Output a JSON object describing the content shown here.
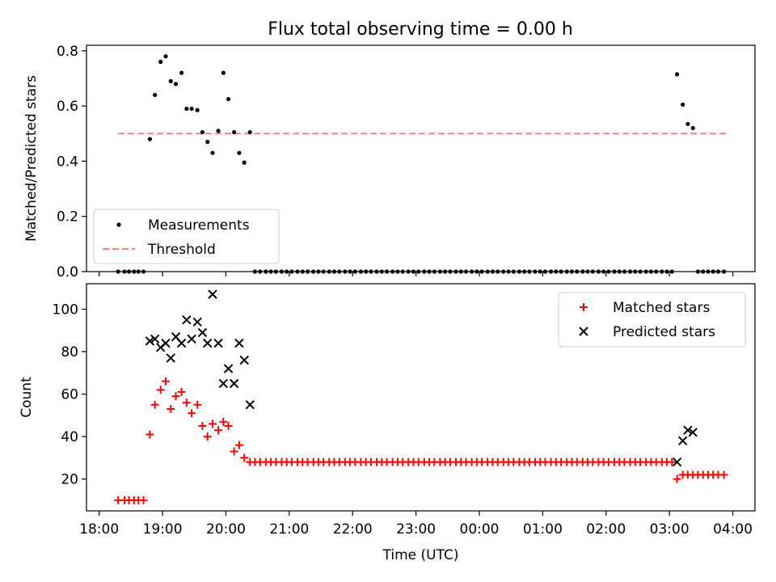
{
  "title": "Flux total observing time = 0.00 h",
  "chart_data": [
    {
      "type": "scatter",
      "ylabel": "Matched/Predicted stars",
      "xlim": [
        -0.2,
        10.35
      ],
      "ylim": [
        0,
        0.82
      ],
      "yticks": [
        0.0,
        0.2,
        0.4,
        0.6,
        0.8
      ],
      "yticklabels": [
        "0.0",
        "0.2",
        "0.4",
        "0.6",
        "0.8"
      ],
      "threshold": {
        "value": 0.5,
        "x_range": [
          0.3,
          9.9
        ],
        "color": "#ff7f7f"
      },
      "legend": {
        "position": "lower-left",
        "entries": [
          "Measurements",
          "Threshold"
        ]
      },
      "series": [
        {
          "name": "Measurements",
          "color": "#000000",
          "points": [
            [
              0.3,
              0
            ],
            [
              0.4,
              0
            ],
            [
              0.47,
              0
            ],
            [
              0.55,
              0
            ],
            [
              0.62,
              0
            ],
            [
              0.7,
              0
            ],
            [
              0.8,
              0.48
            ],
            [
              0.88,
              0.64
            ],
            [
              0.97,
              0.76
            ],
            [
              1.05,
              0.78
            ],
            [
              1.13,
              0.69
            ],
            [
              1.21,
              0.68
            ],
            [
              1.3,
              0.72
            ],
            [
              1.38,
              0.59
            ],
            [
              1.46,
              0.59
            ],
            [
              1.55,
              0.585
            ],
            [
              1.63,
              0.505
            ],
            [
              1.71,
              0.47
            ],
            [
              1.79,
              0.43
            ],
            [
              1.88,
              0.51
            ],
            [
              1.96,
              0.72
            ],
            [
              2.04,
              0.625
            ],
            [
              2.13,
              0.505
            ],
            [
              2.21,
              0.43
            ],
            [
              2.29,
              0.395
            ],
            [
              2.38,
              0.505
            ],
            [
              2.46,
              0
            ],
            [
              2.54,
              0
            ],
            [
              2.63,
              0
            ],
            [
              2.71,
              0
            ],
            [
              2.79,
              0
            ],
            [
              2.88,
              0
            ],
            [
              2.96,
              0
            ],
            [
              3.04,
              0
            ],
            [
              3.13,
              0
            ],
            [
              3.21,
              0
            ],
            [
              3.29,
              0
            ],
            [
              3.38,
              0
            ],
            [
              3.46,
              0
            ],
            [
              3.54,
              0
            ],
            [
              3.63,
              0
            ],
            [
              3.71,
              0
            ],
            [
              3.79,
              0
            ],
            [
              3.88,
              0
            ],
            [
              3.96,
              0
            ],
            [
              4.04,
              0
            ],
            [
              4.13,
              0
            ],
            [
              4.21,
              0
            ],
            [
              4.29,
              0
            ],
            [
              4.38,
              0
            ],
            [
              4.46,
              0
            ],
            [
              4.54,
              0
            ],
            [
              4.63,
              0
            ],
            [
              4.71,
              0
            ],
            [
              4.79,
              0
            ],
            [
              4.88,
              0
            ],
            [
              4.96,
              0
            ],
            [
              5.04,
              0
            ],
            [
              5.13,
              0
            ],
            [
              5.21,
              0
            ],
            [
              5.29,
              0
            ],
            [
              5.38,
              0
            ],
            [
              5.46,
              0
            ],
            [
              5.54,
              0
            ],
            [
              5.63,
              0
            ],
            [
              5.71,
              0
            ],
            [
              5.79,
              0
            ],
            [
              5.88,
              0
            ],
            [
              5.96,
              0
            ],
            [
              6.04,
              0
            ],
            [
              6.13,
              0
            ],
            [
              6.21,
              0
            ],
            [
              6.29,
              0
            ],
            [
              6.38,
              0
            ],
            [
              6.46,
              0
            ],
            [
              6.54,
              0
            ],
            [
              6.63,
              0
            ],
            [
              6.71,
              0
            ],
            [
              6.79,
              0
            ],
            [
              6.88,
              0
            ],
            [
              6.96,
              0
            ],
            [
              7.04,
              0
            ],
            [
              7.13,
              0
            ],
            [
              7.21,
              0
            ],
            [
              7.29,
              0
            ],
            [
              7.38,
              0
            ],
            [
              7.46,
              0
            ],
            [
              7.54,
              0
            ],
            [
              7.63,
              0
            ],
            [
              7.71,
              0
            ],
            [
              7.79,
              0
            ],
            [
              7.88,
              0
            ],
            [
              7.96,
              0
            ],
            [
              8.04,
              0
            ],
            [
              8.13,
              0
            ],
            [
              8.21,
              0
            ],
            [
              8.29,
              0
            ],
            [
              8.38,
              0
            ],
            [
              8.46,
              0
            ],
            [
              8.54,
              0
            ],
            [
              8.63,
              0
            ],
            [
              8.71,
              0
            ],
            [
              8.79,
              0
            ],
            [
              8.88,
              0
            ],
            [
              8.96,
              0
            ],
            [
              9.04,
              0
            ],
            [
              9.12,
              0.715
            ],
            [
              9.21,
              0.605
            ],
            [
              9.29,
              0.535
            ],
            [
              9.37,
              0.52
            ],
            [
              9.45,
              0
            ],
            [
              9.53,
              0
            ],
            [
              9.61,
              0
            ],
            [
              9.69,
              0
            ],
            [
              9.77,
              0
            ],
            [
              9.86,
              0
            ]
          ]
        }
      ]
    },
    {
      "type": "scatter",
      "xlabel": "Time (UTC)",
      "ylabel": "Count",
      "xlim": [
        -0.2,
        10.35
      ],
      "ylim": [
        5,
        112
      ],
      "xticks": [
        0,
        1,
        2,
        3,
        4,
        5,
        6,
        7,
        8,
        9,
        10
      ],
      "xticklabels": [
        "18:00",
        "19:00",
        "20:00",
        "21:00",
        "22:00",
        "23:00",
        "00:00",
        "01:00",
        "02:00",
        "03:00",
        "04:00"
      ],
      "yticks": [
        20,
        40,
        60,
        80,
        100
      ],
      "yticklabels": [
        "20",
        "40",
        "60",
        "80",
        "100"
      ],
      "legend": {
        "position": "upper-right",
        "entries": [
          "Matched stars",
          "Predicted stars"
        ]
      },
      "series": [
        {
          "name": "Matched stars",
          "marker": "plus",
          "color": "#ff0000",
          "points": [
            [
              0.3,
              10
            ],
            [
              0.4,
              10
            ],
            [
              0.47,
              10
            ],
            [
              0.55,
              10
            ],
            [
              0.62,
              10
            ],
            [
              0.7,
              10
            ],
            [
              0.8,
              41
            ],
            [
              0.88,
              55
            ],
            [
              0.97,
              62
            ],
            [
              1.05,
              66
            ],
            [
              1.13,
              53
            ],
            [
              1.21,
              59
            ],
            [
              1.3,
              61
            ],
            [
              1.38,
              56
            ],
            [
              1.46,
              51
            ],
            [
              1.55,
              55
            ],
            [
              1.63,
              45
            ],
            [
              1.71,
              40
            ],
            [
              1.79,
              46
            ],
            [
              1.88,
              43
            ],
            [
              1.96,
              47
            ],
            [
              2.04,
              45
            ],
            [
              2.13,
              33
            ],
            [
              2.21,
              36
            ],
            [
              2.29,
              30
            ],
            [
              2.38,
              28
            ],
            [
              2.46,
              28
            ],
            [
              2.54,
              28
            ],
            [
              2.63,
              28
            ],
            [
              2.71,
              28
            ],
            [
              2.79,
              28
            ],
            [
              2.88,
              28
            ],
            [
              2.96,
              28
            ],
            [
              3.04,
              28
            ],
            [
              3.13,
              28
            ],
            [
              3.21,
              28
            ],
            [
              3.29,
              28
            ],
            [
              3.38,
              28
            ],
            [
              3.46,
              28
            ],
            [
              3.54,
              28
            ],
            [
              3.63,
              28
            ],
            [
              3.71,
              28
            ],
            [
              3.79,
              28
            ],
            [
              3.88,
              28
            ],
            [
              3.96,
              28
            ],
            [
              4.04,
              28
            ],
            [
              4.13,
              28
            ],
            [
              4.21,
              28
            ],
            [
              4.29,
              28
            ],
            [
              4.38,
              28
            ],
            [
              4.46,
              28
            ],
            [
              4.54,
              28
            ],
            [
              4.63,
              28
            ],
            [
              4.71,
              28
            ],
            [
              4.79,
              28
            ],
            [
              4.88,
              28
            ],
            [
              4.96,
              28
            ],
            [
              5.04,
              28
            ],
            [
              5.13,
              28
            ],
            [
              5.21,
              28
            ],
            [
              5.29,
              28
            ],
            [
              5.38,
              28
            ],
            [
              5.46,
              28
            ],
            [
              5.54,
              28
            ],
            [
              5.63,
              28
            ],
            [
              5.71,
              28
            ],
            [
              5.79,
              28
            ],
            [
              5.88,
              28
            ],
            [
              5.96,
              28
            ],
            [
              6.04,
              28
            ],
            [
              6.13,
              28
            ],
            [
              6.21,
              28
            ],
            [
              6.29,
              28
            ],
            [
              6.38,
              28
            ],
            [
              6.46,
              28
            ],
            [
              6.54,
              28
            ],
            [
              6.63,
              28
            ],
            [
              6.71,
              28
            ],
            [
              6.79,
              28
            ],
            [
              6.88,
              28
            ],
            [
              6.96,
              28
            ],
            [
              7.04,
              28
            ],
            [
              7.13,
              28
            ],
            [
              7.21,
              28
            ],
            [
              7.29,
              28
            ],
            [
              7.38,
              28
            ],
            [
              7.46,
              28
            ],
            [
              7.54,
              28
            ],
            [
              7.63,
              28
            ],
            [
              7.71,
              28
            ],
            [
              7.79,
              28
            ],
            [
              7.88,
              28
            ],
            [
              7.96,
              28
            ],
            [
              8.04,
              28
            ],
            [
              8.13,
              28
            ],
            [
              8.21,
              28
            ],
            [
              8.29,
              28
            ],
            [
              8.38,
              28
            ],
            [
              8.46,
              28
            ],
            [
              8.54,
              28
            ],
            [
              8.63,
              28
            ],
            [
              8.71,
              28
            ],
            [
              8.79,
              28
            ],
            [
              8.88,
              28
            ],
            [
              8.96,
              28
            ],
            [
              9.04,
              28
            ],
            [
              9.12,
              20
            ],
            [
              9.21,
              22
            ],
            [
              9.29,
              22
            ],
            [
              9.37,
              22
            ],
            [
              9.45,
              22
            ],
            [
              9.53,
              22
            ],
            [
              9.61,
              22
            ],
            [
              9.69,
              22
            ],
            [
              9.77,
              22
            ],
            [
              9.86,
              22
            ]
          ]
        },
        {
          "name": "Predicted stars",
          "marker": "x",
          "color": "#000000",
          "points": [
            [
              0.8,
              85
            ],
            [
              0.88,
              86
            ],
            [
              0.97,
              82
            ],
            [
              1.05,
              84
            ],
            [
              1.13,
              77
            ],
            [
              1.21,
              87
            ],
            [
              1.3,
              84
            ],
            [
              1.38,
              95
            ],
            [
              1.46,
              86
            ],
            [
              1.55,
              94
            ],
            [
              1.63,
              89
            ],
            [
              1.71,
              84
            ],
            [
              1.79,
              107
            ],
            [
              1.88,
              84
            ],
            [
              1.96,
              65
            ],
            [
              2.04,
              72
            ],
            [
              2.13,
              65
            ],
            [
              2.21,
              84
            ],
            [
              2.29,
              76
            ],
            [
              2.38,
              55
            ],
            [
              9.12,
              28
            ],
            [
              9.21,
              38
            ],
            [
              9.29,
              43
            ],
            [
              9.37,
              42
            ]
          ]
        }
      ]
    }
  ]
}
